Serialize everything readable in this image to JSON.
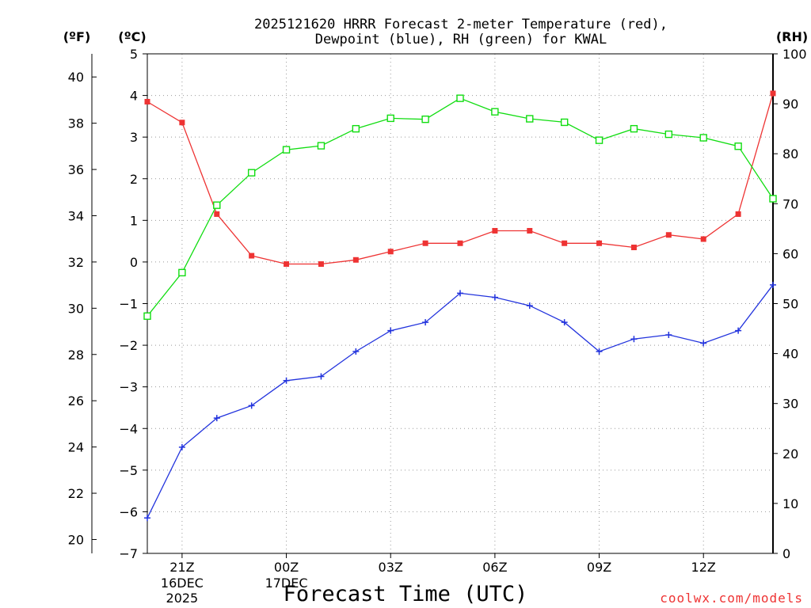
{
  "chart_data": {
    "type": "line",
    "title_line1": "2025121620 HRRR Forecast 2-meter Temperature (red),",
    "title_line2": "Dewpoint (blue), RH (green) for KWAL",
    "axis_unit_f": "(ºF)",
    "axis_unit_c": "(ºC)",
    "axis_unit_rh": "(RH)",
    "xlabel": "Forecast Time (UTC)",
    "credit": "coolwx.com/models",
    "x_hours": [
      0,
      1,
      2,
      3,
      4,
      5,
      6,
      7,
      8,
      9,
      10,
      11,
      12,
      13,
      14,
      15,
      16,
      17,
      18
    ],
    "x_range": [
      0,
      18
    ],
    "x_ticks": [
      {
        "h": 1,
        "label": "21Z"
      },
      {
        "h": 4,
        "label": "00Z"
      },
      {
        "h": 7,
        "label": "03Z"
      },
      {
        "h": 10,
        "label": "06Z"
      },
      {
        "h": 13,
        "label": "09Z"
      },
      {
        "h": 16,
        "label": "12Z"
      }
    ],
    "x_date_labels": [
      {
        "h": 1,
        "lines": [
          "16DEC",
          "2025"
        ]
      },
      {
        "h": 4,
        "lines": [
          "17DEC"
        ]
      }
    ],
    "c_axis": {
      "range": [
        -7,
        5
      ],
      "ticks": [
        5,
        4,
        3,
        2,
        1,
        0,
        -1,
        -2,
        -3,
        -4,
        -5,
        -6,
        -7
      ]
    },
    "f_axis": {
      "ticks": [
        40,
        38,
        36,
        34,
        32,
        30,
        28,
        26,
        24,
        22,
        20
      ]
    },
    "rh_axis": {
      "range": [
        0,
        100
      ],
      "ticks": [
        100,
        90,
        80,
        70,
        60,
        50,
        40,
        30,
        20,
        10,
        0
      ]
    },
    "series": [
      {
        "name": "Temperature",
        "unit": "C",
        "color": "#ee3333",
        "marker": "filled-square",
        "values": [
          3.85,
          3.35,
          1.15,
          0.15,
          -0.05,
          -0.05,
          0.05,
          0.25,
          0.45,
          0.45,
          0.75,
          0.75,
          0.45,
          0.45,
          0.35,
          0.65,
          0.55,
          1.15,
          4.05
        ]
      },
      {
        "name": "Dewpoint",
        "unit": "C",
        "color": "#2233dd",
        "marker": "plus",
        "values": [
          -6.15,
          -4.45,
          -3.75,
          -3.45,
          -2.85,
          -2.75,
          -2.15,
          -1.65,
          -1.45,
          -0.75,
          -0.85,
          -1.05,
          -1.45,
          -2.15,
          -1.85,
          -1.75,
          -1.95,
          -1.65,
          -0.55
        ]
      },
      {
        "name": "RH",
        "unit": "%",
        "color": "#11dd11",
        "marker": "open-square",
        "values": [
          47.5,
          56.2,
          69.7,
          76.2,
          80.8,
          81.6,
          85.0,
          87.1,
          86.9,
          91.1,
          88.4,
          87.0,
          86.3,
          82.7,
          85.0,
          83.9,
          83.2,
          81.5,
          71.0
        ]
      }
    ]
  }
}
